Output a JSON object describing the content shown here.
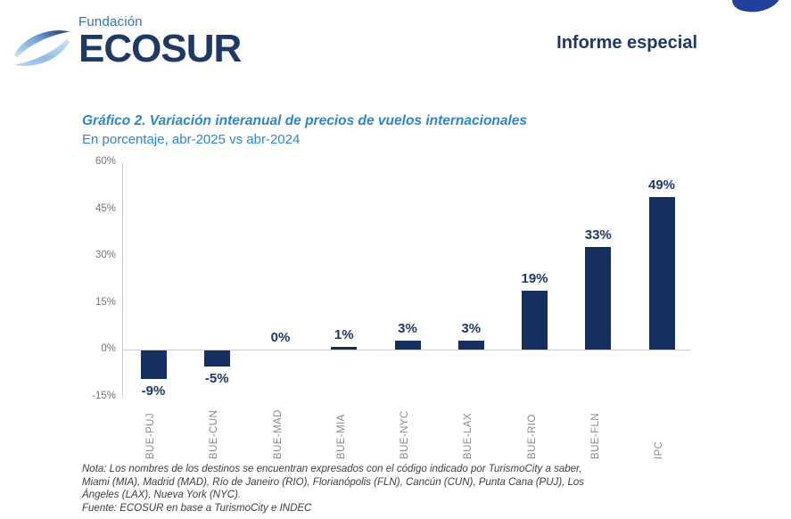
{
  "header": {
    "logo_top": "Fundación",
    "logo_main": "ECOSUR",
    "report_title": "Informe especial"
  },
  "chart_data": {
    "type": "bar",
    "title": "Gráfico 2. Variación interanual de precios de vuelos internacionales",
    "subtitle": "En porcentaje, abr-2025 vs abr-2024",
    "categories": [
      "BUE-PUJ",
      "BUE-CUN",
      "BUE-MAD",
      "BUE-MIA",
      "BUE-NYC",
      "BUE-LAX",
      "BUE-RIO",
      "BUE-FLN",
      "IPC"
    ],
    "values": [
      -9,
      -5,
      0,
      1,
      3,
      3,
      19,
      33,
      49
    ],
    "value_labels": [
      "-9%",
      "-5%",
      "0%",
      "1%",
      "3%",
      "3%",
      "19%",
      "33%",
      "49%"
    ],
    "yticks": [
      60,
      45,
      30,
      15,
      0,
      -15
    ],
    "ytick_labels": [
      "60%",
      "45%",
      "30%",
      "15%",
      "0%",
      "-15%"
    ],
    "ylim": [
      -15,
      60
    ],
    "xlabel": "",
    "ylabel": "",
    "grid": "none",
    "legend": "none",
    "bar_color": "#15305f",
    "value_label_color": "#1f3864"
  },
  "note": {
    "lines": [
      "Nota: Los nombres de los destinos se encuentran expresados con el código indicado por TurismoCity a saber,",
      "Miami (MIA), Madrid (MAD), Río de Janeiro (RIO), Florianópolis (FLN), Cancún (CUN), Punta Cana (PUJ), Los",
      "Ángeles (LAX), Nueva York (NYC).",
      "Fuente: ECOSUR en base a TurismoCity e INDEC"
    ]
  },
  "colors": {
    "brand_navy": "#1f3864",
    "brand_medium_blue": "#2e86c6",
    "fundacion_blue": "#2e74b5",
    "corner_blue": "#24409c",
    "axis_gray": "#cccccc",
    "tick_text_gray": "#757575",
    "category_text_gray": "#8a8a8a"
  }
}
